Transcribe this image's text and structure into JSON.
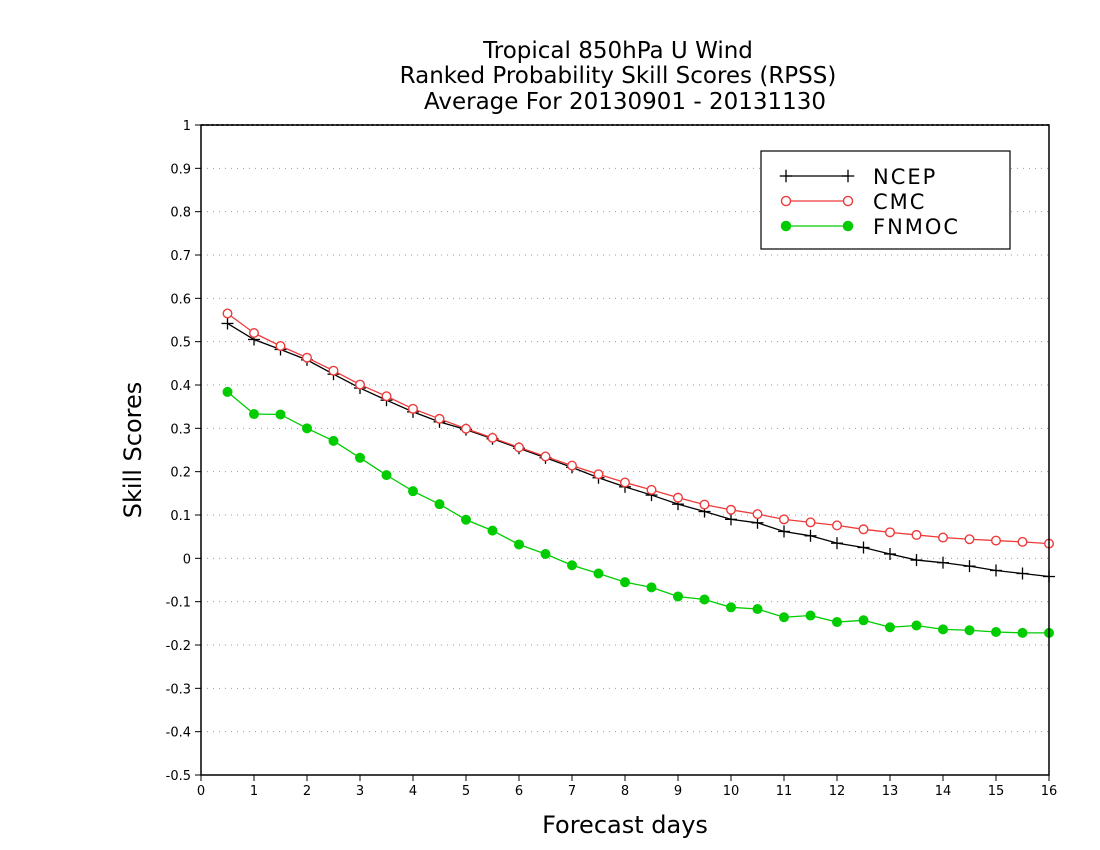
{
  "chart_data": {
    "type": "line",
    "title_lines": [
      "Tropical 850hPa U Wind",
      "Ranked Probability Skill Scores (RPSS)",
      "Average For 20130901 - 20131130"
    ],
    "xlabel": "Forecast days",
    "ylabel": "Skill Scores",
    "xlim": [
      0,
      16
    ],
    "ylim": [
      -0.5,
      1
    ],
    "x_ticks": [
      0,
      1,
      2,
      3,
      4,
      5,
      6,
      7,
      8,
      9,
      10,
      11,
      12,
      13,
      14,
      15,
      16
    ],
    "x_tick_labels": [
      "0",
      "1",
      "2",
      "3",
      "4",
      "5",
      "6",
      "7",
      "8",
      "9",
      "10",
      "11",
      "12",
      "13",
      "14",
      "15",
      "16"
    ],
    "y_ticks": [
      -0.5,
      -0.4,
      -0.3,
      -0.2,
      -0.1,
      0,
      0.1,
      0.2,
      0.3,
      0.4,
      0.5,
      0.6,
      0.7,
      0.8,
      0.9,
      1
    ],
    "y_tick_labels": [
      "-0.5",
      "-0.4",
      "-0.3",
      "-0.2",
      "-0.1",
      "0",
      "0.1",
      "0.2",
      "0.3",
      "0.4",
      "0.5",
      "0.6",
      "0.7",
      "0.8",
      "0.9",
      "1"
    ],
    "grid": "horizontal dotted",
    "legend_position": "top-right",
    "x": [
      0.5,
      1,
      1.5,
      2,
      2.5,
      3,
      3.5,
      4,
      4.5,
      5,
      5.5,
      6,
      6.5,
      7,
      7.5,
      8,
      8.5,
      9,
      9.5,
      10,
      10.5,
      11,
      11.5,
      12,
      12.5,
      13,
      13.5,
      14,
      14.5,
      15,
      15.5,
      16
    ],
    "series": [
      {
        "name": "NCEP",
        "color": "#000000",
        "marker": "plus",
        "values": [
          0.542,
          0.505,
          0.482,
          0.458,
          0.425,
          0.393,
          0.365,
          0.338,
          0.315,
          0.297,
          0.276,
          0.254,
          0.232,
          0.21,
          0.186,
          0.165,
          0.146,
          0.125,
          0.108,
          0.09,
          0.082,
          0.062,
          0.052,
          0.035,
          0.025,
          0.01,
          -0.004,
          -0.01,
          -0.018,
          -0.028,
          -0.035,
          -0.042
        ]
      },
      {
        "name": "CMC",
        "color": "#ee3a3a",
        "marker": "open-circle",
        "values": [
          0.565,
          0.52,
          0.49,
          0.463,
          0.433,
          0.401,
          0.374,
          0.345,
          0.322,
          0.299,
          0.278,
          0.256,
          0.235,
          0.214,
          0.194,
          0.175,
          0.158,
          0.14,
          0.124,
          0.112,
          0.102,
          0.09,
          0.083,
          0.076,
          0.067,
          0.06,
          0.054,
          0.048,
          0.044,
          0.041,
          0.038,
          0.034
        ]
      },
      {
        "name": "FNMOC",
        "color": "#00cc00",
        "marker": "filled-circle",
        "values": [
          0.384,
          0.333,
          0.332,
          0.3,
          0.271,
          0.232,
          0.192,
          0.155,
          0.125,
          0.089,
          0.064,
          0.032,
          0.01,
          -0.016,
          -0.035,
          -0.055,
          -0.067,
          -0.088,
          -0.095,
          -0.113,
          -0.117,
          -0.136,
          -0.132,
          -0.147,
          -0.143,
          -0.159,
          -0.155,
          -0.164,
          -0.166,
          -0.17,
          -0.172,
          -0.172
        ]
      }
    ]
  }
}
